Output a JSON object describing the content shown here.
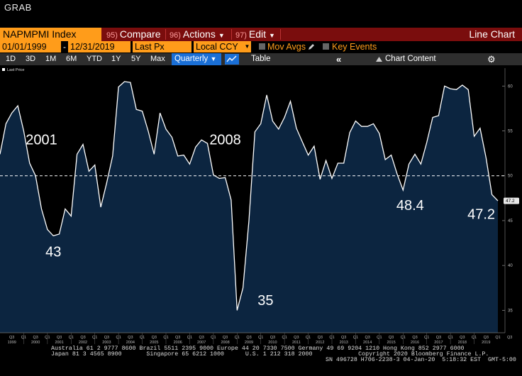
{
  "window_title": "GRAB",
  "toolbar": {
    "ticker": "NAPMPMI Index",
    "compare": {
      "num": "95)",
      "label": "Compare"
    },
    "actions": {
      "num": "96)",
      "label": "Actions"
    },
    "edit": {
      "num": "97)",
      "label": "Edit"
    },
    "chart_kind": "Line Chart"
  },
  "settings": {
    "start_date": "01/01/1999",
    "end_date": "12/31/2019",
    "field": "Last Px",
    "currency": "Local CCY",
    "mov_avgs": "Mov Avgs",
    "key_events": "Key Events"
  },
  "ranges": {
    "buttons": [
      "1D",
      "3D",
      "1M",
      "6M",
      "YTD",
      "1Y",
      "5Y",
      "Max"
    ],
    "frequency": "Quarterly",
    "table": "Table",
    "chart_content": "Chart Content"
  },
  "colors": {
    "accent": "#ff9c1a",
    "toolbar_red": "#7a0d0d",
    "area_fill": "#0c2540",
    "line": "#ffffff",
    "select_blue": "#1a6fd6"
  },
  "chart_data": {
    "type": "area",
    "legend": "Last Price",
    "last_value_label": "47.2",
    "y_ticks": [
      35,
      40,
      45,
      50,
      55,
      60
    ],
    "ylim": [
      32.5,
      62
    ],
    "reference_line": 50,
    "year_labels": [
      "1999",
      "2000",
      "2001",
      "2002",
      "2003",
      "2004",
      "2005",
      "2006",
      "2007",
      "2008",
      "2009",
      "2010",
      "2011",
      "2012",
      "2013",
      "2014",
      "2015",
      "2016",
      "2017",
      "2018",
      "2019"
    ],
    "quarter_labels": [
      "Q3",
      "Q1",
      "Q3",
      "Q1",
      "Q3",
      "Q1",
      "Q3",
      "Q1",
      "Q3",
      "Q1",
      "Q3",
      "Q1",
      "Q3",
      "Q1",
      "Q3",
      "Q1",
      "Q3",
      "Q1",
      "Q3",
      "Q1",
      "Q3",
      "Q1",
      "Q3",
      "Q1",
      "Q3",
      "Q1",
      "Q3",
      "Q1",
      "Q3",
      "Q1",
      "Q3",
      "Q1",
      "Q3",
      "Q1",
      "Q3",
      "Q1",
      "Q3",
      "Q1",
      "Q3",
      "Q1",
      "Q3",
      "Q1",
      "Q3"
    ],
    "start_year": 1999,
    "values": [
      52.4,
      55.8,
      57.0,
      57.8,
      55.0,
      51.4,
      50.0,
      46.3,
      44.0,
      43.3,
      43.5,
      46.3,
      45.5,
      52.4,
      53.5,
      50.5,
      51.2,
      46.5,
      49.2,
      52.2,
      59.9,
      60.5,
      60.4,
      57.4,
      57.2,
      55.0,
      52.4,
      57.0,
      55.2,
      54.3,
      52.2,
      52.3,
      51.3,
      53.2,
      54.0,
      53.6,
      50.1,
      49.7,
      49.8,
      47.3,
      35.0,
      37.5,
      45.0,
      54.9,
      55.8,
      59.0,
      56.1,
      55.2,
      56.5,
      58.3,
      55.3,
      53.8,
      52.3,
      53.3,
      49.6,
      51.7,
      49.7,
      51.4,
      51.4,
      54.8,
      56.1,
      55.5,
      55.5,
      55.8,
      54.7,
      51.8,
      52.3,
      50.2,
      48.4,
      51.3,
      52.4,
      51.3,
      53.7,
      56.5,
      56.7,
      60.0,
      59.7,
      59.6,
      60.1,
      59.6,
      54.4,
      55.3,
      52.0,
      47.9,
      47.2
    ],
    "annotations": [
      {
        "text": "2001",
        "x": 2000.75,
        "y": 53.5
      },
      {
        "text": "43",
        "x": 2001.25,
        "y": 41.0
      },
      {
        "text": "2008",
        "x": 2008.5,
        "y": 53.5
      },
      {
        "text": "35",
        "x": 2010.2,
        "y": 35.6
      },
      {
        "text": "48.4",
        "x": 2016.3,
        "y": 46.2
      },
      {
        "text": "47.2",
        "x": 2019.3,
        "y": 45.2
      }
    ]
  },
  "footer": {
    "line1": "Australia 61 2 9777 8600 Brazil 5511 2395 9000 Europe 44 20 7330 7500 Germany 49 69 9204 1210 Hong Kong 852 2977 6000",
    "line2": "Japan 81 3 4565 8900       Singapore 65 6212 1000      U.S. 1 212 318 2000             Copyright 2020 Bloomberg Finance L.P.",
    "line3": "SN 496728 H706-2238-3 04-Jan-20  5:18:32 EST  GMT-5:00"
  }
}
